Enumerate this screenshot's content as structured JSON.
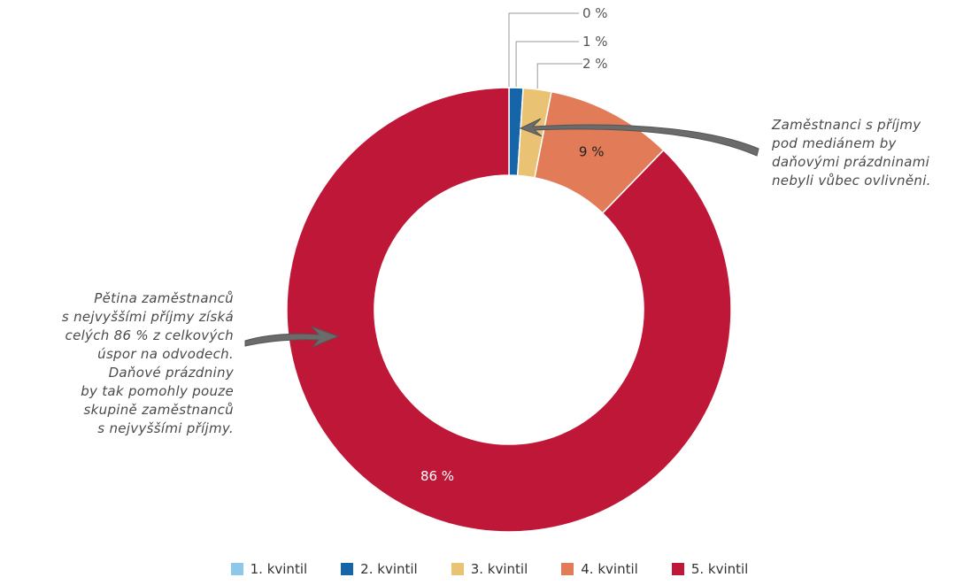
{
  "chart_data": {
    "type": "pie",
    "donut": true,
    "series": [
      {
        "name": "1. kvintil",
        "value": 0,
        "label": "0 %",
        "color": "#8dc8ea"
      },
      {
        "name": "2. kvintil",
        "value": 1,
        "label": "1 %",
        "color": "#1565a8"
      },
      {
        "name": "3. kvintil",
        "value": 2,
        "label": "2 %",
        "color": "#e9c373"
      },
      {
        "name": "4. kvintil",
        "value": 9,
        "label": "9 %",
        "color": "#e27c58"
      },
      {
        "name": "5. kvintil",
        "value": 86,
        "label": "86 %",
        "color": "#bf1738"
      }
    ],
    "legend_position": "bottom",
    "annotations": {
      "right": [
        "Zaměstnanci s příjmy",
        "pod mediánem by",
        "daňovými prázdninami",
        "nebyli vůbec ovlivněni."
      ],
      "left": [
        "Pětina zaměstnanců",
        "s nejvyššími příjmy získá",
        "celých 86 % z celkových",
        "úspor na odvodech.",
        "Daňové prázdniny",
        "by tak pomohly pouze",
        "skupině zaměstnanců",
        "s nejvyššími příjmy."
      ]
    }
  }
}
